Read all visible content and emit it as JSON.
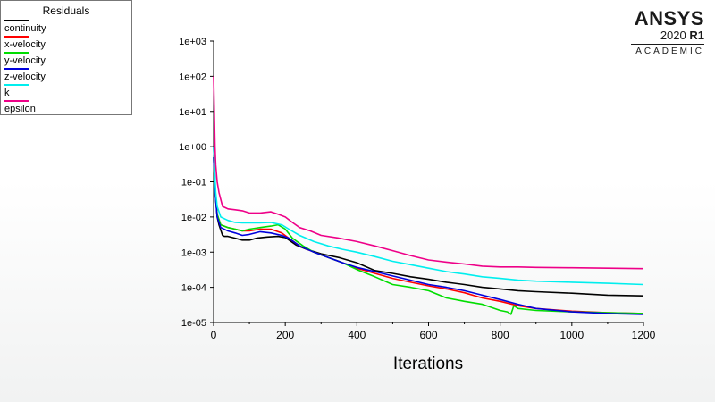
{
  "logo": {
    "brand": "ANSYS",
    "version": "2020",
    "release": "R1",
    "edition": "ACADEMIC"
  },
  "legend": {
    "title": "Residuals",
    "placement": "top-left"
  },
  "chart_data": {
    "type": "line",
    "xlabel": "Iterations",
    "ylabel": "",
    "yscale": "log",
    "xlim": [
      0,
      1200
    ],
    "ylim": [
      1e-05,
      1000
    ],
    "grid": false,
    "x_ticks": [
      "0",
      "200",
      "400",
      "600",
      "800",
      "1000",
      "1200"
    ],
    "y_ticks": [
      "1e-05",
      "1e-04",
      "1e-03",
      "1e-02",
      "1e-01",
      "1e+00",
      "1e+01",
      "1e+02",
      "1e+03"
    ],
    "series": [
      {
        "name": "continuity",
        "color": "#000000",
        "points": [
          [
            0,
            1.0
          ],
          [
            2,
            0.3
          ],
          [
            5,
            0.05
          ],
          [
            10,
            0.01
          ],
          [
            15,
            0.006
          ],
          [
            25,
            0.003
          ],
          [
            30,
            0.0028
          ],
          [
            40,
            0.0028
          ],
          [
            60,
            0.0025
          ],
          [
            80,
            0.0022
          ],
          [
            100,
            0.0022
          ],
          [
            120,
            0.0025
          ],
          [
            150,
            0.0027
          ],
          [
            180,
            0.0028
          ],
          [
            200,
            0.0026
          ],
          [
            230,
            0.0016
          ],
          [
            260,
            0.0012
          ],
          [
            300,
            0.0009
          ],
          [
            350,
            0.0007
          ],
          [
            400,
            0.0005
          ],
          [
            450,
            0.0003
          ],
          [
            500,
            0.00025
          ],
          [
            550,
            0.0002
          ],
          [
            600,
            0.00017
          ],
          [
            650,
            0.00014
          ],
          [
            700,
            0.00012
          ],
          [
            750,
            0.0001
          ],
          [
            800,
            9e-05
          ],
          [
            850,
            8e-05
          ],
          [
            900,
            7.5e-05
          ],
          [
            1000,
            6.8e-05
          ],
          [
            1100,
            6e-05
          ],
          [
            1200,
            5.7e-05
          ]
        ]
      },
      {
        "name": "x-velocity",
        "color": "#ff0000",
        "points": [
          [
            0,
            0.5
          ],
          [
            3,
            0.1
          ],
          [
            6,
            0.03
          ],
          [
            10,
            0.012
          ],
          [
            20,
            0.006
          ],
          [
            40,
            0.005
          ],
          [
            60,
            0.0045
          ],
          [
            80,
            0.004
          ],
          [
            100,
            0.004
          ],
          [
            130,
            0.0045
          ],
          [
            160,
            0.0045
          ],
          [
            190,
            0.0035
          ],
          [
            210,
            0.0025
          ],
          [
            240,
            0.0015
          ],
          [
            280,
            0.001
          ],
          [
            320,
            0.0007
          ],
          [
            360,
            0.0005
          ],
          [
            400,
            0.00035
          ],
          [
            450,
            0.00025
          ],
          [
            500,
            0.00018
          ],
          [
            550,
            0.00014
          ],
          [
            600,
            0.00011
          ],
          [
            650,
            9e-05
          ],
          [
            700,
            7e-05
          ],
          [
            750,
            5e-05
          ],
          [
            800,
            4e-05
          ],
          [
            850,
            3e-05
          ],
          [
            900,
            2.5e-05
          ],
          [
            1000,
            2.1e-05
          ],
          [
            1100,
            1.9e-05
          ],
          [
            1200,
            1.8e-05
          ]
        ]
      },
      {
        "name": "y-velocity",
        "color": "#00dd00",
        "points": [
          [
            0,
            0.5
          ],
          [
            3,
            0.1
          ],
          [
            6,
            0.03
          ],
          [
            10,
            0.012
          ],
          [
            20,
            0.006
          ],
          [
            40,
            0.005
          ],
          [
            60,
            0.0045
          ],
          [
            80,
            0.004
          ],
          [
            100,
            0.0045
          ],
          [
            130,
            0.005
          ],
          [
            160,
            0.0055
          ],
          [
            180,
            0.006
          ],
          [
            200,
            0.0045
          ],
          [
            220,
            0.0025
          ],
          [
            250,
            0.0015
          ],
          [
            280,
            0.001
          ],
          [
            320,
            0.0007
          ],
          [
            360,
            0.0005
          ],
          [
            400,
            0.00032
          ],
          [
            450,
            0.0002
          ],
          [
            500,
            0.00012
          ],
          [
            550,
            0.0001
          ],
          [
            600,
            8e-05
          ],
          [
            650,
            5e-05
          ],
          [
            700,
            4e-05
          ],
          [
            750,
            3.3e-05
          ],
          [
            800,
            2.2e-05
          ],
          [
            820,
            2e-05
          ],
          [
            830,
            1.7e-05
          ],
          [
            838,
            3e-05
          ],
          [
            850,
            2.5e-05
          ],
          [
            900,
            2.2e-05
          ],
          [
            1000,
            2e-05
          ],
          [
            1100,
            1.9e-05
          ],
          [
            1200,
            1.8e-05
          ]
        ]
      },
      {
        "name": "z-velocity",
        "color": "#0000dd",
        "points": [
          [
            0,
            0.5
          ],
          [
            3,
            0.1
          ],
          [
            6,
            0.03
          ],
          [
            10,
            0.01
          ],
          [
            20,
            0.005
          ],
          [
            40,
            0.004
          ],
          [
            60,
            0.0035
          ],
          [
            80,
            0.003
          ],
          [
            100,
            0.0032
          ],
          [
            130,
            0.0038
          ],
          [
            160,
            0.0035
          ],
          [
            190,
            0.003
          ],
          [
            210,
            0.0025
          ],
          [
            240,
            0.0015
          ],
          [
            280,
            0.001
          ],
          [
            320,
            0.0007
          ],
          [
            360,
            0.0005
          ],
          [
            400,
            0.00037
          ],
          [
            450,
            0.00028
          ],
          [
            500,
            0.00021
          ],
          [
            550,
            0.00016
          ],
          [
            600,
            0.00012
          ],
          [
            650,
            0.0001
          ],
          [
            700,
            8e-05
          ],
          [
            750,
            6e-05
          ],
          [
            800,
            4.5e-05
          ],
          [
            850,
            3.3e-05
          ],
          [
            900,
            2.5e-05
          ],
          [
            1000,
            2e-05
          ],
          [
            1100,
            1.8e-05
          ],
          [
            1200,
            1.7e-05
          ]
        ]
      },
      {
        "name": "k",
        "color": "#00eeee",
        "points": [
          [
            0,
            1.0
          ],
          [
            3,
            0.2
          ],
          [
            6,
            0.05
          ],
          [
            10,
            0.02
          ],
          [
            20,
            0.01
          ],
          [
            40,
            0.008
          ],
          [
            60,
            0.007
          ],
          [
            80,
            0.0068
          ],
          [
            100,
            0.0068
          ],
          [
            130,
            0.0068
          ],
          [
            160,
            0.007
          ],
          [
            190,
            0.006
          ],
          [
            210,
            0.0045
          ],
          [
            240,
            0.003
          ],
          [
            280,
            0.002
          ],
          [
            320,
            0.0015
          ],
          [
            360,
            0.0012
          ],
          [
            400,
            0.001
          ],
          [
            450,
            0.00075
          ],
          [
            500,
            0.00055
          ],
          [
            550,
            0.00044
          ],
          [
            600,
            0.00035
          ],
          [
            650,
            0.00028
          ],
          [
            700,
            0.00024
          ],
          [
            750,
            0.0002
          ],
          [
            800,
            0.00018
          ],
          [
            850,
            0.00016
          ],
          [
            900,
            0.00015
          ],
          [
            1000,
            0.00014
          ],
          [
            1100,
            0.00013
          ],
          [
            1200,
            0.00012
          ]
        ]
      },
      {
        "name": "epsilon",
        "color": "#ee0088",
        "points": [
          [
            0,
            100
          ],
          [
            2,
            10
          ],
          [
            4,
            1.0
          ],
          [
            6,
            0.3
          ],
          [
            10,
            0.1
          ],
          [
            15,
            0.05
          ],
          [
            25,
            0.02
          ],
          [
            40,
            0.017
          ],
          [
            60,
            0.016
          ],
          [
            80,
            0.015
          ],
          [
            100,
            0.013
          ],
          [
            130,
            0.013
          ],
          [
            160,
            0.014
          ],
          [
            180,
            0.012
          ],
          [
            200,
            0.01
          ],
          [
            220,
            0.007
          ],
          [
            240,
            0.005
          ],
          [
            270,
            0.004
          ],
          [
            300,
            0.003
          ],
          [
            350,
            0.0025
          ],
          [
            400,
            0.002
          ],
          [
            450,
            0.0015
          ],
          [
            500,
            0.0011
          ],
          [
            550,
            0.0008
          ],
          [
            600,
            0.0006
          ],
          [
            650,
            0.00052
          ],
          [
            700,
            0.00046
          ],
          [
            750,
            0.0004
          ],
          [
            800,
            0.00038
          ],
          [
            850,
            0.00038
          ],
          [
            900,
            0.00037
          ],
          [
            1000,
            0.00036
          ],
          [
            1100,
            0.00035
          ],
          [
            1200,
            0.00034
          ]
        ]
      }
    ]
  }
}
